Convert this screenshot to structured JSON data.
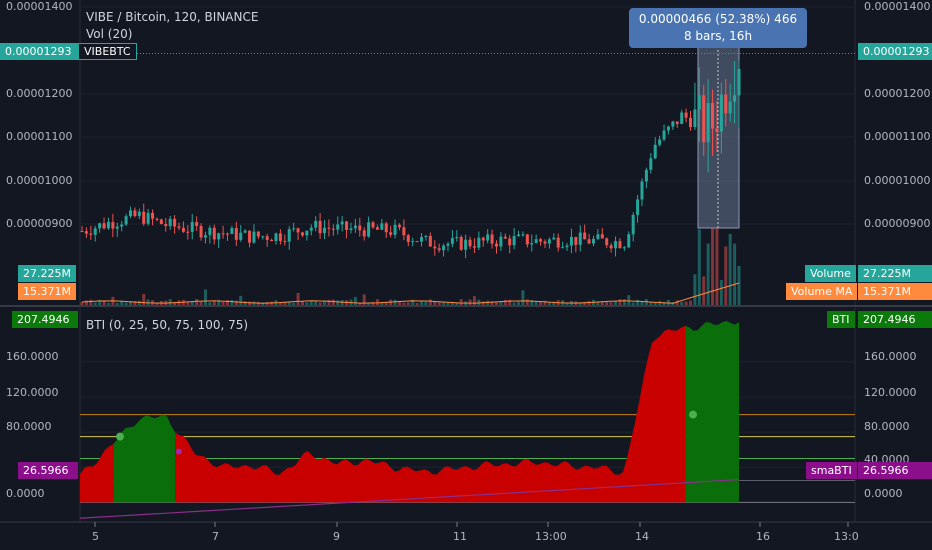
{
  "header": {
    "symbol_line": "VIBE / Bitcoin, 120, BINANCE",
    "volume_line": "Vol (20)",
    "bti_line": "BTI (0, 25, 50, 75, 100, 75)"
  },
  "tooltip": {
    "line1": "0.00000466 (52.38%) 466",
    "line2": "8 bars, 16h"
  },
  "price_axis": {
    "labels": [
      "0.00001400",
      "0.00001200",
      "0.00001100",
      "0.00001000",
      "0.00000900"
    ],
    "last_price": "0.00001293",
    "symbol_tag": "VIBEBTC"
  },
  "volume_tags": {
    "volume_label": "Volume",
    "volume_value": "27.225M",
    "ma_label": "Volume MA",
    "ma_value": "15.371M"
  },
  "bti_axis": {
    "labels": [
      "160.0000",
      "120.0000",
      "80.0000",
      "40.0000",
      "0.0000"
    ],
    "bti_label": "BTI",
    "bti_value": "207.4946",
    "sma_label": "smaBTI",
    "sma_value": "26.5966"
  },
  "time_axis": {
    "labels": [
      "5",
      "7",
      "9",
      "11",
      "13:00",
      "14",
      "16",
      "13:0"
    ]
  },
  "colors": {
    "background": "#131722",
    "up": "#26a69a",
    "down": "#ef5350",
    "bti_red": "#c80000",
    "bti_green": "#0a6e0a",
    "tooltip": "#4a74b1",
    "bti_tag": "#0b7a0b",
    "sma_tag": "#8b0f8b",
    "ma_tag": "#ff8a3d"
  },
  "chart_data": {
    "type": "line",
    "price_series": {
      "name": "VIBEBTC",
      "x": [
        "5",
        "5.5",
        "6",
        "6.5",
        "7",
        "7.5",
        "8",
        "8.5",
        "9",
        "9.5",
        "10",
        "10.5",
        "11",
        "11.5",
        "12",
        "12.5",
        "13:00",
        "13.5",
        "14",
        "14.5",
        "15",
        "15.25",
        "15.5",
        "15.75"
      ],
      "close": [
        8.85e-06,
        9.05e-06,
        9.2e-06,
        8.98e-06,
        8.88e-06,
        8.8e-06,
        8.72e-06,
        8.76e-06,
        8.95e-06,
        8.9e-06,
        8.88e-06,
        8.85e-06,
        8.6e-06,
        8.55e-06,
        8.6e-06,
        8.65e-06,
        8.62e-06,
        8.66e-06,
        8.62e-06,
        8.6e-06,
        1.08e-05,
        1.15e-05,
        1.12e-05,
        1.293e-05
      ]
    },
    "bti_series": {
      "name": "BTI",
      "values": [
        30,
        62,
        95,
        98,
        56,
        40,
        42,
        33,
        56,
        44,
        48,
        40,
        35,
        38,
        42,
        44,
        46,
        42,
        40,
        34,
        190,
        198,
        202,
        207.49
      ]
    },
    "sma_bti_last": 26.5966,
    "bti_levels": [
      0,
      25,
      50,
      75,
      100
    ],
    "bti_ylim": [
      -20,
      210
    ]
  }
}
